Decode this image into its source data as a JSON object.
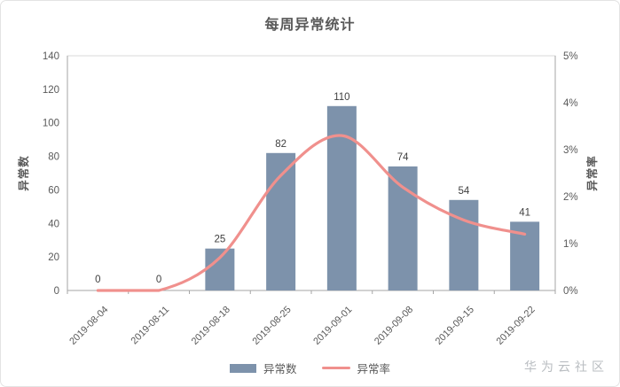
{
  "watermark": "华为云社区",
  "chart_data": {
    "type": "combo-bar-line",
    "title": "每周异常统计",
    "categories": [
      "2019-08-04",
      "2019-08-11",
      "2019-08-18",
      "2019-08-25",
      "2019-09-01",
      "2019-09-08",
      "2019-09-15",
      "2019-09-22"
    ],
    "series": [
      {
        "name": "异常数",
        "type": "bar",
        "axis": "left",
        "color": "#7D92AB",
        "values": [
          0,
          0,
          25,
          82,
          110,
          74,
          54,
          41
        ],
        "data_labels": [
          "0",
          "0",
          "25",
          "82",
          "110",
          "74",
          "54",
          "41"
        ]
      },
      {
        "name": "异常率",
        "type": "line",
        "axis": "right",
        "color": "#F0908D",
        "values_percent": [
          0,
          0,
          0.7,
          2.45,
          3.3,
          2.2,
          1.5,
          1.2
        ],
        "smoothed": true
      }
    ],
    "left_axis": {
      "title": "异常数",
      "min": 0,
      "max": 140,
      "step": 20,
      "tick_labels": [
        "0",
        "20",
        "40",
        "60",
        "80",
        "100",
        "120",
        "140"
      ]
    },
    "right_axis": {
      "title": "异常率",
      "min": 0,
      "max": 5,
      "step": 1,
      "tick_labels": [
        "0%",
        "1%",
        "2%",
        "3%",
        "4%",
        "5%"
      ]
    },
    "x_axis": {
      "label_rotation_deg": -45
    },
    "grid": false,
    "legend_position": "bottom",
    "styles": {
      "tick_label_color": "#595959",
      "bar_label_color": "#404040",
      "axis_line_color": "#a6a6a6",
      "plot_border_color": "#d9d9d9",
      "title_color": "#595959"
    }
  }
}
